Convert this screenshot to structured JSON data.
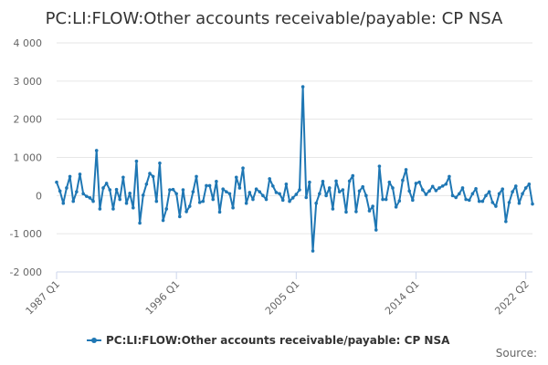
{
  "chart_data": {
    "type": "line",
    "title": "PC:LI:FLOW:Other accounts receivable/payable: CP NSA",
    "series": [
      {
        "name": "PC:LI:FLOW:Other accounts receivable/payable: CP NSA",
        "color": "#1f77b4",
        "values": [
          350,
          120,
          -200,
          200,
          500,
          -150,
          100,
          560,
          50,
          -20,
          -60,
          -150,
          1180,
          -350,
          200,
          320,
          150,
          -350,
          160,
          -100,
          480,
          -200,
          60,
          -320,
          900,
          -720,
          10,
          300,
          580,
          500,
          -150,
          850,
          -650,
          -350,
          150,
          160,
          50,
          -550,
          150,
          -420,
          -280,
          100,
          500,
          -180,
          -150,
          260,
          260,
          -100,
          370,
          -430,
          170,
          100,
          50,
          -320,
          480,
          200,
          720,
          -200,
          80,
          -100,
          170,
          100,
          0,
          -100,
          440,
          250,
          80,
          50,
          -120,
          300,
          -150,
          -60,
          30,
          150,
          2850,
          -50,
          350,
          -1450,
          -200,
          50,
          370,
          0,
          200,
          -350,
          380,
          100,
          150,
          -430,
          380,
          520,
          -420,
          120,
          230,
          0,
          -400,
          -280,
          -900,
          770,
          -100,
          -100,
          350,
          200,
          -300,
          -140,
          400,
          680,
          120,
          -120,
          320,
          350,
          150,
          30,
          120,
          240,
          130,
          200,
          250,
          300,
          500,
          0,
          -50,
          50,
          200,
          -100,
          -120,
          50,
          180,
          -150,
          -150,
          0,
          100,
          -180,
          -280,
          50,
          170,
          -680,
          -180,
          100,
          250,
          -200,
          50,
          200,
          300,
          -220
        ]
      }
    ],
    "x_tick_labels": [
      "1987 Q1",
      "1996 Q1",
      "2005 Q1",
      "2014 Q1",
      "2022 Q2"
    ],
    "x_tick_indices": [
      0,
      36,
      72,
      108,
      141
    ],
    "y_tick_labels": [
      "4 000",
      "3 000",
      "2 000",
      "1 000",
      "0",
      "-1 000",
      "-2 000"
    ],
    "y_tick_values": [
      4000,
      3000,
      2000,
      1000,
      0,
      -1000,
      -2000
    ],
    "ylim": [
      -2000,
      4000
    ],
    "legend_position": "bottom",
    "grid": true,
    "source_label": "Source:"
  }
}
